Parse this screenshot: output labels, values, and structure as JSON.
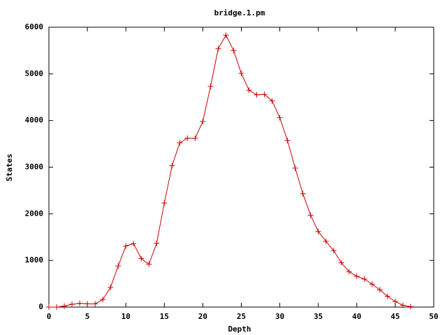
{
  "chart_data": {
    "type": "line",
    "title": "bridge.1.pm",
    "x_label": "Depth",
    "y_label": "States",
    "x": [
      0,
      1,
      2,
      3,
      4,
      5,
      6,
      7,
      8,
      9,
      10,
      11,
      12,
      13,
      14,
      15,
      16,
      17,
      18,
      19,
      20,
      21,
      22,
      23,
      24,
      25,
      26,
      27,
      28,
      29,
      30,
      31,
      32,
      33,
      34,
      35,
      36,
      37,
      38,
      39,
      40,
      41,
      42,
      43,
      44,
      45,
      46,
      47
    ],
    "series": [
      {
        "name": "bridge.1.pm",
        "color": "#cc0000",
        "values": [
          0,
          0,
          20,
          60,
          80,
          70,
          70,
          160,
          420,
          880,
          1310,
          1360,
          1040,
          920,
          1370,
          2230,
          3030,
          3520,
          3620,
          3620,
          3980,
          4730,
          5540,
          5830,
          5500,
          5010,
          4650,
          4550,
          4560,
          4420,
          4060,
          3570,
          2980,
          2430,
          1970,
          1620,
          1410,
          1210,
          950,
          760,
          660,
          600,
          490,
          370,
          230,
          120,
          40,
          10
        ]
      }
    ],
    "xlim": [
      0,
      50
    ],
    "xticks": [
      0,
      5,
      10,
      15,
      20,
      25,
      30,
      35,
      40,
      45,
      50
    ],
    "ylim": [
      0,
      6000
    ],
    "yticks": [
      0,
      1000,
      2000,
      3000,
      4000,
      5000,
      6000
    ],
    "grid": false
  }
}
